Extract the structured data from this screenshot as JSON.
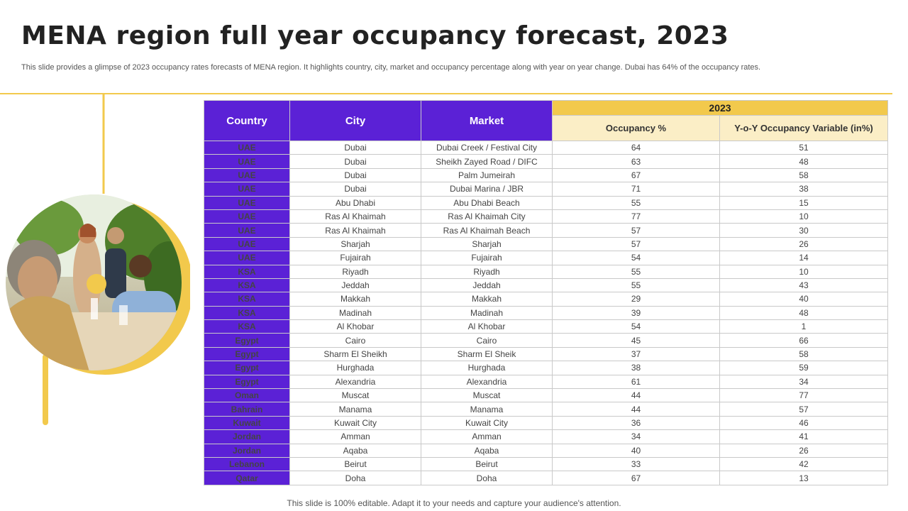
{
  "slide": {
    "title": "MENA region full year occupancy forecast, 2023",
    "subtitle": "This slide provides a glimpse of 2023 occupancy rates forecasts of MENA region. It highlights country, city, market and occupancy percentage along with year on year change. Dubai has 64% of the occupancy rates.",
    "footer": "This slide is 100% editable. Adapt it to your needs and capture your audience's attention."
  },
  "colors": {
    "accent_yellow": "#f2c94c",
    "header_purple": "#5b21d6",
    "subheader_cream": "#fbeec6"
  },
  "image": {
    "icon": "business-meeting-photo"
  },
  "table": {
    "headers": {
      "country": "Country",
      "city": "City",
      "market": "Market",
      "year": "2023",
      "occupancy": "Occupancy %",
      "yoy": "Y-o-Y Occupancy Variable (in%)"
    },
    "rows": [
      {
        "country": "UAE",
        "city": "Dubai",
        "market": "Dubai Creek / Festival City",
        "occupancy": "64",
        "yoy": "51"
      },
      {
        "country": "UAE",
        "city": "Dubai",
        "market": "Sheikh Zayed Road / DIFC",
        "occupancy": "63",
        "yoy": "48"
      },
      {
        "country": "UAE",
        "city": "Dubai",
        "market": "Palm Jumeirah",
        "occupancy": "67",
        "yoy": "58"
      },
      {
        "country": "UAE",
        "city": "Dubai",
        "market": "Dubai Marina / JBR",
        "occupancy": "71",
        "yoy": "38"
      },
      {
        "country": "UAE",
        "city": "Abu Dhabi",
        "market": "Abu Dhabi Beach",
        "occupancy": "55",
        "yoy": "15"
      },
      {
        "country": "UAE",
        "city": "Ras Al Khaimah",
        "market": "Ras Al Khaimah City",
        "occupancy": "77",
        "yoy": "10"
      },
      {
        "country": "UAE",
        "city": "Ras Al Khaimah",
        "market": "Ras Al Khaimah Beach",
        "occupancy": "57",
        "yoy": "30"
      },
      {
        "country": "UAE",
        "city": "Sharjah",
        "market": "Sharjah",
        "occupancy": "57",
        "yoy": "26"
      },
      {
        "country": "UAE",
        "city": "Fujairah",
        "market": "Fujairah",
        "occupancy": "54",
        "yoy": "14"
      },
      {
        "country": "KSA",
        "city": "Riyadh",
        "market": "Riyadh",
        "occupancy": "55",
        "yoy": "10"
      },
      {
        "country": "KSA",
        "city": "Jeddah",
        "market": "Jeddah",
        "occupancy": "55",
        "yoy": "43"
      },
      {
        "country": "KSA",
        "city": "Makkah",
        "market": "Makkah",
        "occupancy": "29",
        "yoy": "40"
      },
      {
        "country": "KSA",
        "city": "Madinah",
        "market": "Madinah",
        "occupancy": "39",
        "yoy": "48"
      },
      {
        "country": "KSA",
        "city": "Al Khobar",
        "market": "Al Khobar",
        "occupancy": "54",
        "yoy": "1"
      },
      {
        "country": "Egypt",
        "city": "Cairo",
        "market": "Cairo",
        "occupancy": "45",
        "yoy": "66"
      },
      {
        "country": "Egypt",
        "city": "Sharm El Sheikh",
        "market": "Sharm El Sheik",
        "occupancy": "37",
        "yoy": "58"
      },
      {
        "country": "Egypt",
        "city": "Hurghada",
        "market": "Hurghada",
        "occupancy": "38",
        "yoy": "59"
      },
      {
        "country": "Egypt",
        "city": "Alexandria",
        "market": "Alexandria",
        "occupancy": "61",
        "yoy": "34"
      },
      {
        "country": "Oman",
        "city": "Muscat",
        "market": "Muscat",
        "occupancy": "44",
        "yoy": "77"
      },
      {
        "country": "Bahrain",
        "city": "Manama",
        "market": "Manama",
        "occupancy": "44",
        "yoy": "57"
      },
      {
        "country": "Kuwait",
        "city": "Kuwait City",
        "market": "Kuwait City",
        "occupancy": "36",
        "yoy": "46"
      },
      {
        "country": "Jordan",
        "city": "Amman",
        "market": "Amman",
        "occupancy": "34",
        "yoy": "41"
      },
      {
        "country": "Jordan",
        "city": "Aqaba",
        "market": "Aqaba",
        "occupancy": "40",
        "yoy": "26"
      },
      {
        "country": "Lebanon",
        "city": "Beirut",
        "market": "Beirut",
        "occupancy": "33",
        "yoy": "42"
      },
      {
        "country": "Qatar",
        "city": "Doha",
        "market": "Doha",
        "occupancy": "67",
        "yoy": "13"
      }
    ]
  }
}
